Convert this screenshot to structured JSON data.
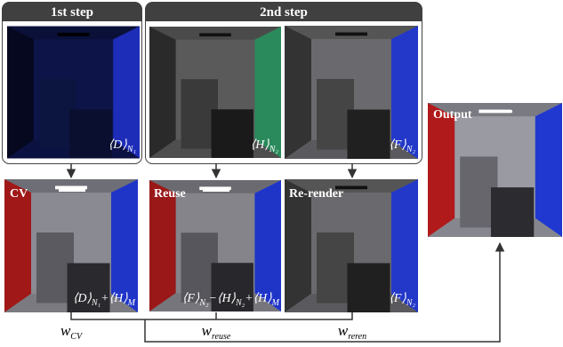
{
  "headers": [
    "1st step",
    "2nd step"
  ],
  "top_images": [
    {
      "math": [
        {
          "base": "⟨D⟩",
          "sub": "N₁"
        }
      ]
    },
    {
      "math": [
        {
          "base": "⟨H⟩",
          "sub": "N₂"
        }
      ]
    },
    {
      "math": [
        {
          "base": "⟨F⟩",
          "sub": "N₂"
        }
      ]
    }
  ],
  "bottom_images": [
    {
      "title": "CV",
      "math": [
        {
          "base": "⟨D⟩",
          "sub": "N₁"
        },
        {
          "base": "+⟨H⟩",
          "sub": "M"
        }
      ]
    },
    {
      "title": "Reuse",
      "math": [
        {
          "base": "⟨F⟩",
          "sub": "N₂"
        },
        {
          "base": "−⟨H⟩",
          "sub": "N₂"
        },
        {
          "base": "+⟨H⟩",
          "sub": "M"
        }
      ]
    },
    {
      "title": "Re-render",
      "math": [
        {
          "base": "⟨F⟩",
          "sub": "N₂"
        }
      ]
    }
  ],
  "output": {
    "title": "Output"
  },
  "weights": [
    {
      "base": "w",
      "sub": "CV"
    },
    {
      "base": "w",
      "sub": "reuse"
    },
    {
      "base": "w",
      "sub": "reren"
    }
  ]
}
